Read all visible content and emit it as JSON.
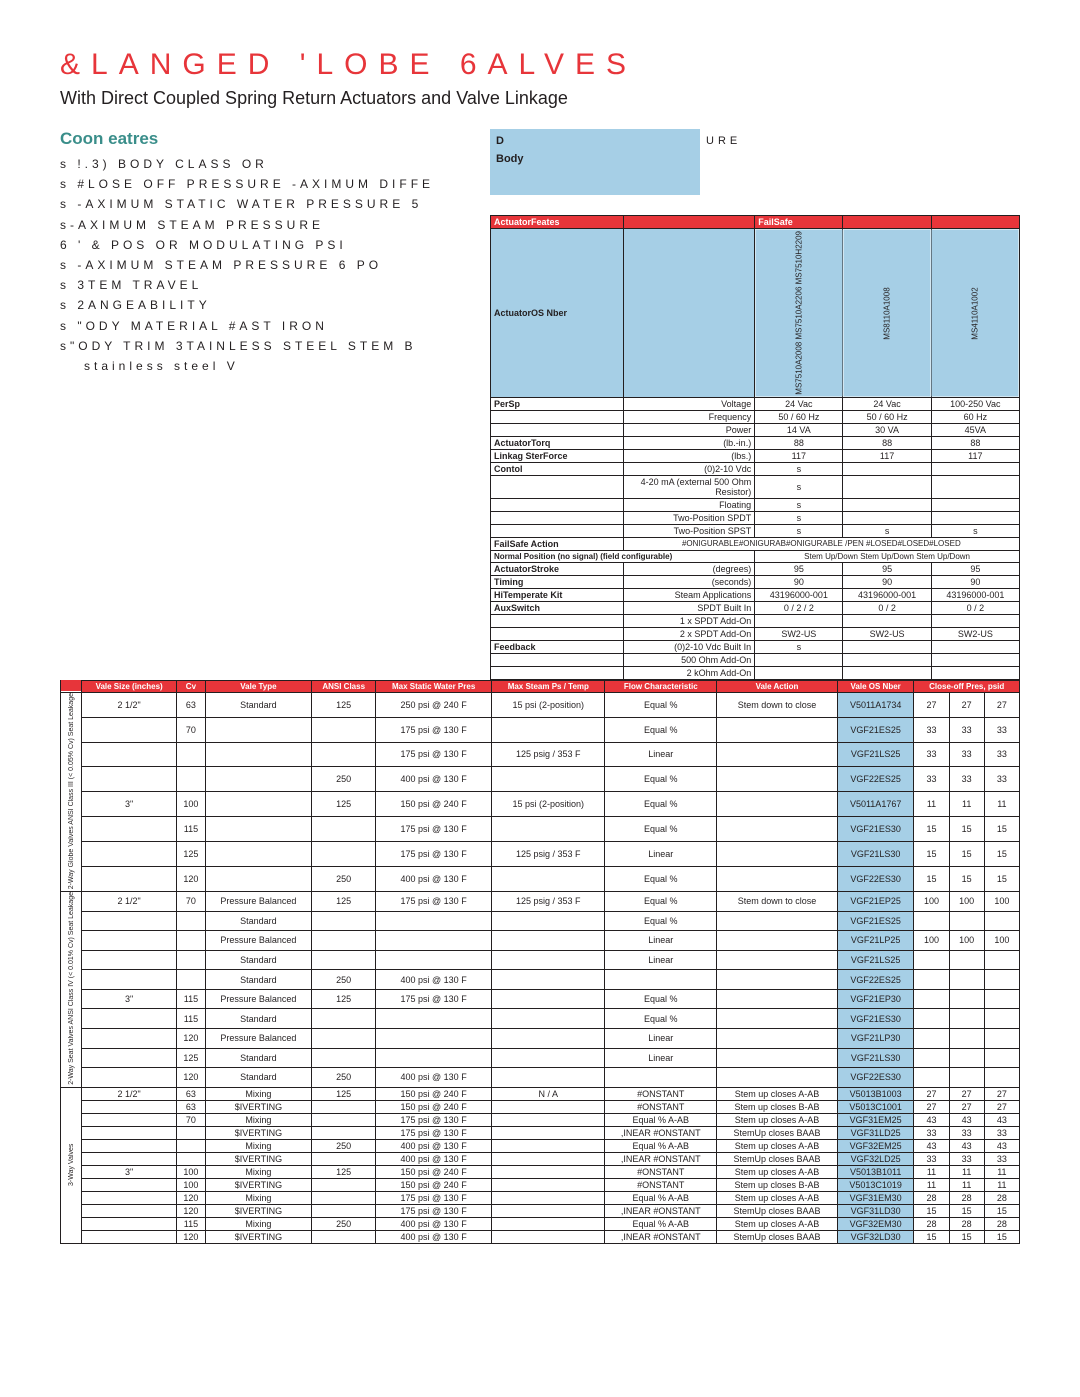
{
  "title": "&LANGED 'LOBE 6ALVES",
  "subtitle": "With Direct Coupled Spring Return Actuators and Valve Linkage",
  "features_title": "Coon eatres",
  "features": [
    "s !.3) BODY CLASS    OR",
    "s #LOSE OFF PRESSURE  -AXIMUM DIFFE",
    "s -AXIMUM STATIC WATER PRESSURE  5",
    "s-AXIMUM STEAM PRESSURE",
    "6 ' &    POS OR MODULATING    PSI",
    "s -AXIMUM STEAM PRESSURE 6    PO",
    "s 3TEM TRAVEL",
    "s 2ANGEABILITY",
    "s \"ODY MATERIAL  #AST IRON",
    "s\"ODY TRIM  3TAINLESS STEEL STEM  B"
  ],
  "features_note": "stainless steel V",
  "blueword1": "D",
  "blueword2": "Body",
  "blueword3": "URE",
  "actuator_features": "ActuatorFeates",
  "failsafe": "FailSafe",
  "actuator_os": "ActuatorOS Nber",
  "part_numbers": [
    "MS7510A2008",
    "MS7510A2206",
    "MS7510H2209",
    "MS8110A1008",
    "MS4110A1002"
  ],
  "specs": [
    {
      "k": "PerSp",
      "k2": "Voltage",
      "v": [
        "24 Vac",
        "24 Vac",
        "100-250 Vac"
      ]
    },
    {
      "k": "",
      "k2": "Frequency",
      "v": [
        "50 / 60 Hz",
        "50 / 60 Hz",
        "60 Hz"
      ]
    },
    {
      "k": "",
      "k2": "Power",
      "v": [
        "14 VA",
        "30 VA",
        "45VA"
      ]
    },
    {
      "k": "ActuatorTorq",
      "k2": "(lb.-in.)",
      "v": [
        "88",
        "88",
        "88"
      ]
    },
    {
      "k": "Linkag SterForce",
      "k2": "(lbs.)",
      "v": [
        "117",
        "117",
        "117"
      ]
    },
    {
      "k": "Contol",
      "k2": "(0)2-10 Vdc",
      "v": [
        "s",
        "",
        ""
      ]
    },
    {
      "k": "",
      "k2": "4-20 mA (external 500 Ohm Resistor)",
      "v": [
        "s",
        "",
        ""
      ]
    },
    {
      "k": "",
      "k2": "Floating",
      "v": [
        "s",
        "",
        ""
      ]
    },
    {
      "k": "",
      "k2": "Two-Position SPDT",
      "v": [
        "s",
        "",
        ""
      ]
    },
    {
      "k": "",
      "k2": "Two-Position SPST",
      "v": [
        "s",
        "s",
        "s"
      ]
    }
  ],
  "failsafe_action": "FailSafe Action",
  "failsafe_text": "#ONIGURABLE#ONIGURAB#ONIGURABLE /PEN #LOSED#LOSED#LOSED",
  "normal": "Normal Position (no signal) (field configurable)",
  "normal_val": "Stem Up/Down Stem Up/Down Stem Up/Down",
  "specs2": [
    {
      "k": "ActuatorStroke",
      "k2": "(degrees)",
      "v": [
        "95",
        "95",
        "95"
      ]
    },
    {
      "k": "Timing",
      "k2": "(seconds)",
      "v": [
        "90",
        "90",
        "90"
      ]
    },
    {
      "k": "HiTemperate Kit",
      "k2": "Steam Applications",
      "v": [
        "43196000-001",
        "43196000-001",
        "43196000-001"
      ]
    },
    {
      "k": "AuxSwitch",
      "k2": "SPDT Built In",
      "v": [
        "0 / 2 / 2",
        "0 / 2",
        "0 / 2"
      ]
    },
    {
      "k": "",
      "k2": "1 x SPDT Add-On",
      "v": [
        "",
        "",
        ""
      ]
    },
    {
      "k": "",
      "k2": "2 x SPDT Add-On",
      "v": [
        "SW2-US",
        "SW2-US",
        "SW2-US"
      ]
    },
    {
      "k": "Feedback",
      "k2": "(0)2-10 Vdc Built In",
      "v": [
        "s",
        "",
        ""
      ]
    },
    {
      "k": "",
      "k2": "500 Ohm Add-On",
      "v": [
        "",
        "",
        ""
      ]
    },
    {
      "k": "",
      "k2": "2 kOhm Add-On",
      "v": [
        "",
        "",
        ""
      ]
    }
  ],
  "main_headers": [
    "Vale Size (inches)",
    "Cv",
    "Vale Type",
    "ANSI Class",
    "Max Static Water Pres",
    "Max Steam Ps / Temp",
    "Flow Characteristic",
    "Vale Action",
    "Vale OS Nber",
    "Close-off Pres, psid"
  ],
  "group1_label": "2-Way Globe\nValves ANSI Class III (<\n0.05% Cv) Seat Leakage",
  "group2_label": "2-Way Seat Valves\nANSI Class IV (< 0.01% Cv)\nSeat Leakage",
  "group3_label": "3-Way Valves",
  "rows_g1": [
    {
      "sz": "2 1/2\"",
      "cv": "63",
      "typ": "Standard",
      "cls": "125",
      "wp": "250 psi @ 240 F",
      "sp": "15 psi (2-position)",
      "fc": "Equal %",
      "act": "Stem down to close",
      "os": "V5011A1734",
      "c": [
        "27",
        "27",
        "27"
      ]
    },
    {
      "sz": "",
      "cv": "70",
      "typ": "",
      "cls": "",
      "wp": "175 psi @ 130 F",
      "sp": "",
      "fc": "Equal %",
      "act": "",
      "os": "VGF21ES25",
      "c": [
        "33",
        "33",
        "33"
      ]
    },
    {
      "sz": "",
      "cv": "",
      "typ": "",
      "cls": "",
      "wp": "175 psi @ 130 F",
      "sp": "125 psig / 353 F",
      "fc": "Linear",
      "act": "",
      "os": "VGF21LS25",
      "c": [
        "33",
        "33",
        "33"
      ]
    },
    {
      "sz": "",
      "cv": "",
      "typ": "",
      "cls": "250",
      "wp": "400 psi @ 130 F",
      "sp": "",
      "fc": "Equal %",
      "act": "",
      "os": "VGF22ES25",
      "c": [
        "33",
        "33",
        "33"
      ]
    },
    {
      "sz": "3\"",
      "cv": "100",
      "typ": "",
      "cls": "125",
      "wp": "150 psi @ 240 F",
      "sp": "15 psi (2-position)",
      "fc": "Equal %",
      "act": "",
      "os": "V5011A1767",
      "c": [
        "11",
        "11",
        "11"
      ]
    },
    {
      "sz": "",
      "cv": "115",
      "typ": "",
      "cls": "",
      "wp": "175 psi @ 130 F",
      "sp": "",
      "fc": "Equal %",
      "act": "",
      "os": "VGF21ES30",
      "c": [
        "15",
        "15",
        "15"
      ]
    },
    {
      "sz": "",
      "cv": "125",
      "typ": "",
      "cls": "",
      "wp": "175 psi @ 130 F",
      "sp": "125 psig / 353 F",
      "fc": "Linear",
      "act": "",
      "os": "VGF21LS30",
      "c": [
        "15",
        "15",
        "15"
      ]
    },
    {
      "sz": "",
      "cv": "120",
      "typ": "",
      "cls": "250",
      "wp": "400 psi @ 130 F",
      "sp": "",
      "fc": "Equal %",
      "act": "",
      "os": "VGF22ES30",
      "c": [
        "15",
        "15",
        "15"
      ]
    }
  ],
  "rows_g2": [
    {
      "sz": "2 1/2\"",
      "cv": "70",
      "typ": "Pressure Balanced",
      "cls": "125",
      "wp": "175 psi @ 130 F",
      "sp": "125 psig / 353 F",
      "fc": "Equal %",
      "act": "Stem down to close",
      "os": "VGF21EP25",
      "c": [
        "100",
        "100",
        "100"
      ]
    },
    {
      "sz": "",
      "cv": "",
      "typ": "Standard",
      "cls": "",
      "wp": "",
      "sp": "",
      "fc": "Equal %",
      "act": "",
      "os": "VGF21ES25",
      "c": [
        "",
        "",
        ""
      ]
    },
    {
      "sz": "",
      "cv": "",
      "typ": "Pressure Balanced",
      "cls": "",
      "wp": "",
      "sp": "",
      "fc": "Linear",
      "act": "",
      "os": "VGF21LP25",
      "c": [
        "100",
        "100",
        "100"
      ]
    },
    {
      "sz": "",
      "cv": "",
      "typ": "Standard",
      "cls": "",
      "wp": "",
      "sp": "",
      "fc": "Linear",
      "act": "",
      "os": "VGF21LS25",
      "c": [
        "",
        "",
        ""
      ]
    },
    {
      "sz": "",
      "cv": "",
      "typ": "Standard",
      "cls": "250",
      "wp": "400 psi @ 130 F",
      "sp": "",
      "fc": "",
      "act": "",
      "os": "VGF22ES25",
      "c": [
        "",
        "",
        ""
      ]
    },
    {
      "sz": "3\"",
      "cv": "115",
      "typ": "Pressure Balanced",
      "cls": "125",
      "wp": "175 psi @ 130 F",
      "sp": "",
      "fc": "Equal %",
      "act": "",
      "os": "VGF21EP30",
      "c": [
        "",
        "",
        ""
      ]
    },
    {
      "sz": "",
      "cv": "115",
      "typ": "Standard",
      "cls": "",
      "wp": "",
      "sp": "",
      "fc": "Equal %",
      "act": "",
      "os": "VGF21ES30",
      "c": [
        "",
        "",
        ""
      ]
    },
    {
      "sz": "",
      "cv": "120",
      "typ": "Pressure Balanced",
      "cls": "",
      "wp": "",
      "sp": "",
      "fc": "Linear",
      "act": "",
      "os": "VGF21LP30",
      "c": [
        "",
        "",
        ""
      ]
    },
    {
      "sz": "",
      "cv": "125",
      "typ": "Standard",
      "cls": "",
      "wp": "",
      "sp": "",
      "fc": "Linear",
      "act": "",
      "os": "VGF21LS30",
      "c": [
        "",
        "",
        ""
      ]
    },
    {
      "sz": "",
      "cv": "120",
      "typ": "Standard",
      "cls": "250",
      "wp": "400 psi @ 130 F",
      "sp": "",
      "fc": "",
      "act": "",
      "os": "VGF22ES30",
      "c": [
        "",
        "",
        ""
      ]
    }
  ],
  "rows_g3": [
    {
      "sz": "2 1/2\"",
      "cv": "63",
      "typ": "Mixing",
      "cls": "125",
      "wp": "150 psi @ 240 F",
      "sp": "N / A",
      "fc": "#ONSTANT",
      "act": "Stem up closes A-AB",
      "os": "V5013B1003",
      "c": [
        "27",
        "27",
        "27"
      ]
    },
    {
      "sz": "",
      "cv": "63",
      "typ": "$IVERTING",
      "cls": "",
      "wp": "150 psi @ 240 F",
      "sp": "",
      "fc": "#ONSTANT",
      "act": "Stem up closes B-AB",
      "os": "V5013C1001",
      "c": [
        "27",
        "27",
        "27"
      ]
    },
    {
      "sz": "",
      "cv": "70",
      "typ": "Mixing",
      "cls": "",
      "wp": "175 psi @ 130 F",
      "sp": "",
      "fc": "Equal % A-AB",
      "act": "Stem up closes A-AB",
      "os": "VGF31EM25",
      "c": [
        "43",
        "43",
        "43"
      ]
    },
    {
      "sz": "",
      "cv": "",
      "typ": "$IVERTING",
      "cls": "",
      "wp": "175 psi @ 130 F",
      "sp": "",
      "fc": ",INEAR #ONSTANT",
      "act": "StemUp closes BAAB",
      "os": "VGF31LD25",
      "c": [
        "33",
        "33",
        "33"
      ]
    },
    {
      "sz": "",
      "cv": "",
      "typ": "Mixing",
      "cls": "250",
      "wp": "400 psi @ 130 F",
      "sp": "",
      "fc": "Equal % A-AB",
      "act": "Stem up closes A-AB",
      "os": "VGF32EM25",
      "c": [
        "43",
        "43",
        "43"
      ]
    },
    {
      "sz": "",
      "cv": "",
      "typ": "$IVERTING",
      "cls": "",
      "wp": "400 psi @ 130 F",
      "sp": "",
      "fc": ",INEAR #ONSTANT",
      "act": "StemUp closes BAAB",
      "os": "VGF32LD25",
      "c": [
        "33",
        "33",
        "33"
      ]
    },
    {
      "sz": "3\"",
      "cv": "100",
      "typ": "Mixing",
      "cls": "125",
      "wp": "150 psi @ 240 F",
      "sp": "",
      "fc": "#ONSTANT",
      "act": "Stem up closes A-AB",
      "os": "V5013B1011",
      "c": [
        "11",
        "11",
        "11"
      ]
    },
    {
      "sz": "",
      "cv": "100",
      "typ": "$IVERTING",
      "cls": "",
      "wp": "150 psi @ 240 F",
      "sp": "",
      "fc": "#ONSTANT",
      "act": "Stem up closes B-AB",
      "os": "V5013C1019",
      "c": [
        "11",
        "11",
        "11"
      ]
    },
    {
      "sz": "",
      "cv": "120",
      "typ": "Mixing",
      "cls": "",
      "wp": "175 psi @ 130 F",
      "sp": "",
      "fc": "Equal % A-AB",
      "act": "Stem up closes A-AB",
      "os": "VGF31EM30",
      "c": [
        "28",
        "28",
        "28"
      ]
    },
    {
      "sz": "",
      "cv": "120",
      "typ": "$IVERTING",
      "cls": "",
      "wp": "175 psi @ 130 F",
      "sp": "",
      "fc": ",INEAR #ONSTANT",
      "act": "StemUp closes BAAB",
      "os": "VGF31LD30",
      "c": [
        "15",
        "15",
        "15"
      ]
    },
    {
      "sz": "",
      "cv": "115",
      "typ": "Mixing",
      "cls": "250",
      "wp": "400 psi @ 130 F",
      "sp": "",
      "fc": "Equal % A-AB",
      "act": "Stem up closes A-AB",
      "os": "VGF32EM30",
      "c": [
        "28",
        "28",
        "28"
      ]
    },
    {
      "sz": "",
      "cv": "120",
      "typ": "$IVERTING",
      "cls": "",
      "wp": "400 psi @ 130 F",
      "sp": "",
      "fc": ",INEAR #ONSTANT",
      "act": "StemUp closes BAAB",
      "os": "VGF32LD30",
      "c": [
        "15",
        "15",
        "15"
      ]
    }
  ]
}
